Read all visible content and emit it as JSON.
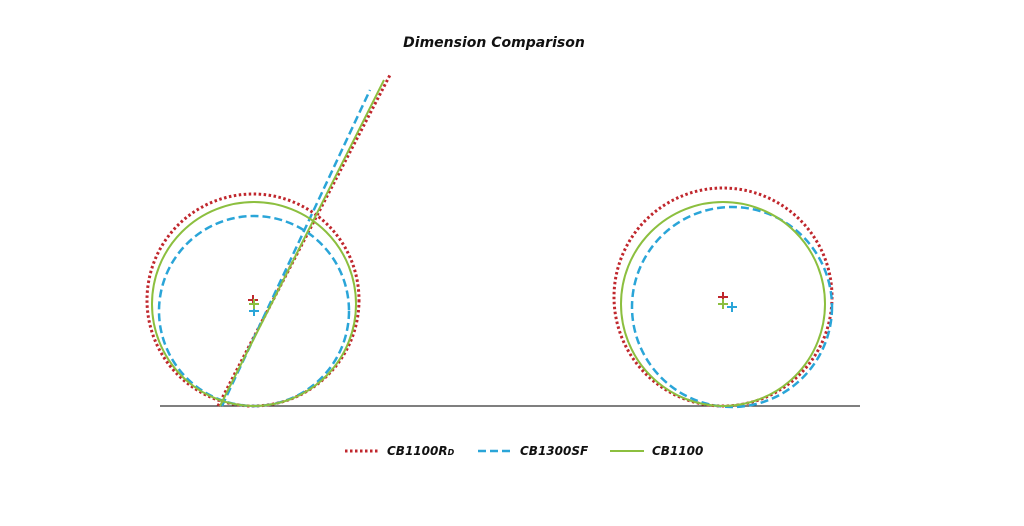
{
  "title": "Dimension Comparison",
  "legend": [
    {
      "name": "CB1100R",
      "subscript": "D",
      "color": "#c0272d"
    },
    {
      "name": "CB1300SF",
      "color": "#2aa5d8"
    },
    {
      "name": "CB1100",
      "color": "#8cbf3f"
    }
  ]
}
